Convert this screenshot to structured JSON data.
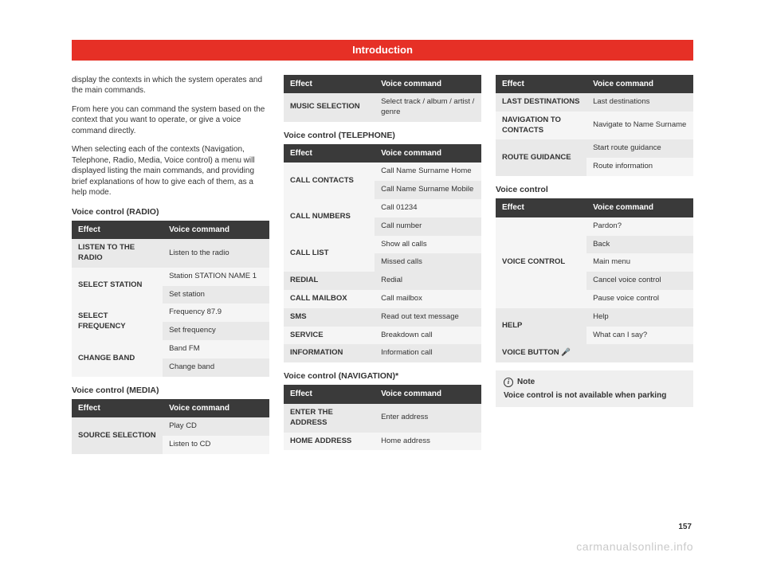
{
  "header": {
    "title": "Introduction"
  },
  "page_number": "157",
  "watermark": "carmanualsonline.info",
  "intro": {
    "p1": "display the contexts in which the system operates and the main commands.",
    "p2": "From here you can command the system based on the context that you want to operate, or give a voice command directly.",
    "p3": "When selecting each of the contexts (Navigation, Telephone, Radio, Media, Voice control) a menu will displayed listing the main commands, and providing brief explanations of how to give each of them, as a help mode."
  },
  "table_header": {
    "effect": "Effect",
    "voice": "Voice command"
  },
  "radio": {
    "title": "Voice control (RADIO)",
    "rows": [
      {
        "effect": "LISTEN TO THE RADIO",
        "cmds": [
          "Listen to the radio"
        ]
      },
      {
        "effect": "SELECT STATION",
        "cmds": [
          "Station STATION NAME 1",
          "Set station"
        ]
      },
      {
        "effect": "SELECT FREQUENCY",
        "cmds": [
          "Frequency 87.9",
          "Set frequency"
        ]
      },
      {
        "effect": "CHANGE BAND",
        "cmds": [
          "Band FM",
          "Change band"
        ]
      }
    ]
  },
  "media": {
    "title": "Voice control (MEDIA)",
    "rows_a": [
      {
        "effect": "SOURCE SELECTION",
        "cmds": [
          "Play CD",
          "Listen to CD"
        ]
      }
    ],
    "rows_b": [
      {
        "effect": "MUSIC SELECTION",
        "cmds": [
          "Select track / album / artist / genre"
        ]
      }
    ]
  },
  "telephone": {
    "title": "Voice control (TELEPHONE)",
    "rows": [
      {
        "effect": "CALL CONTACTS",
        "cmds": [
          "Call Name Surname Home",
          "Call Name Surname Mobile"
        ]
      },
      {
        "effect": "CALL NUMBERS",
        "cmds": [
          "Call 01234",
          "Call number"
        ]
      },
      {
        "effect": "CALL LIST",
        "cmds": [
          "Show all calls",
          "Missed calls"
        ]
      },
      {
        "effect": "REDIAL",
        "cmds": [
          "Redial"
        ]
      },
      {
        "effect": "CALL MAILBOX",
        "cmds": [
          "Call mailbox"
        ]
      },
      {
        "effect": "SMS",
        "cmds": [
          "Read out text message"
        ]
      },
      {
        "effect": "SERVICE",
        "cmds": [
          "Breakdown call"
        ]
      },
      {
        "effect": "INFORMATION",
        "cmds": [
          "Information call"
        ]
      }
    ]
  },
  "navigation": {
    "title": "Voice control (NAVIGATION)*",
    "rows_a": [
      {
        "effect": "ENTER THE ADDRESS",
        "cmds": [
          "Enter address"
        ]
      },
      {
        "effect": "HOME ADDRESS",
        "cmds": [
          "Home address"
        ]
      }
    ],
    "rows_b": [
      {
        "effect": "LAST DESTINATIONS",
        "cmds": [
          "Last destinations"
        ]
      },
      {
        "effect": "NAVIGATION TO CONTACTS",
        "cmds": [
          "Navigate to Name Surname"
        ]
      },
      {
        "effect": "ROUTE GUIDANCE",
        "cmds": [
          "Start route guidance",
          "Route information"
        ]
      }
    ]
  },
  "voice_control": {
    "title": "Voice control",
    "rows": [
      {
        "effect": "VOICE CONTROL",
        "cmds": [
          "Pardon?",
          "Back",
          "Main menu",
          "Cancel voice control",
          "Pause voice control"
        ]
      },
      {
        "effect": "HELP",
        "cmds": [
          "Help",
          "What can I say?"
        ]
      },
      {
        "effect": "VOICE BUTTON 🎤",
        "cmds": [
          ""
        ]
      }
    ]
  },
  "note": {
    "label": "Note",
    "body": "Voice control is not available when parking"
  }
}
